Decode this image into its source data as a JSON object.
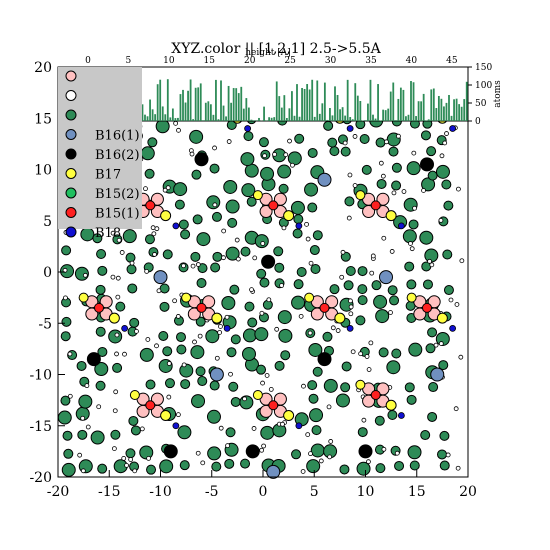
{
  "chart_data": {
    "type": "scatter",
    "title": "XYZ.color || [1,2,1] 2.5->5.5A",
    "xlim": [
      -20,
      20
    ],
    "ylim": [
      -20,
      20
    ],
    "x_ticks": [
      "-20",
      "-15",
      "-10",
      "-5",
      "0",
      "5",
      "10",
      "15",
      "20"
    ],
    "y_ticks": [
      "20",
      "15",
      "10",
      "5",
      "0",
      "-5",
      "-10",
      "-15",
      "-20"
    ],
    "legend_placement": "top-left",
    "legend": [
      {
        "name": "",
        "color": "#ffc0c0"
      },
      {
        "name": "",
        "color": "#ffffff"
      },
      {
        "name": "",
        "color": "#2e8b57"
      },
      {
        "name": "B16(1)",
        "color": "#7090c0"
      },
      {
        "name": "B16(2)",
        "color": "#000000"
      },
      {
        "name": "B17",
        "color": "#ffff40"
      },
      {
        "name": "B15(2)",
        "color": "#20c060"
      },
      {
        "name": "B15(1)",
        "color": "#ff2020"
      },
      {
        "name": "B18",
        "color": "#1010d0"
      }
    ],
    "histogram": {
      "xlabel": "height [A]",
      "ylabel": "atoms",
      "xlim": [
        0,
        47
      ],
      "ylim": [
        0,
        150
      ],
      "x_ticks": [
        "0",
        "5",
        "10",
        "15",
        "20",
        "25",
        "30",
        "35",
        "40",
        "45"
      ],
      "y_ticks": [
        "150",
        "100",
        "50",
        "0"
      ],
      "shaded_range": [
        2.5,
        5.5
      ]
    }
  }
}
